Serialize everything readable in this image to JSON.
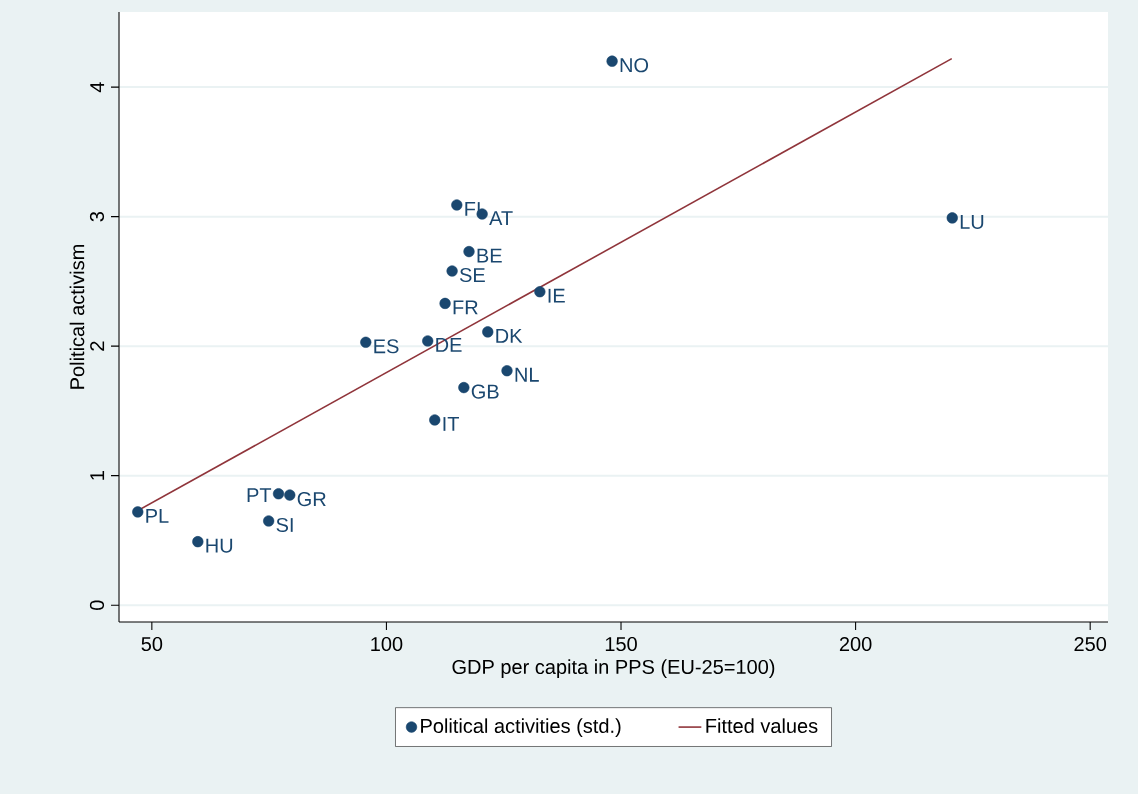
{
  "chart_data": {
    "type": "scatter",
    "xlabel": "GDP per capita in PPS (EU-25=100)",
    "ylabel": "Political activism",
    "x": [
      148.1,
      115.0,
      120.4,
      117.6,
      114.0,
      132.7,
      112.5,
      121.6,
      95.6,
      108.8,
      125.7,
      116.5,
      110.3,
      77.0,
      79.4,
      220.6,
      47.0,
      59.8,
      74.9
    ],
    "series": [
      {
        "name": "Political activities (std.)",
        "color": "#1a476f",
        "marker": "circle",
        "values": [
          4.2,
          3.09,
          3.02,
          2.73,
          2.58,
          2.42,
          2.33,
          2.11,
          2.03,
          2.04,
          1.81,
          1.68,
          1.43,
          0.86,
          0.85,
          2.99,
          0.72,
          0.49,
          0.65
        ]
      },
      {
        "name": "Fitted values",
        "type": "line",
        "color": "#90353b",
        "marker": "none",
        "line_style": "solid",
        "x": [
          46.5,
          220.5
        ],
        "values": [
          0.72,
          4.22
        ]
      }
    ],
    "annotations": [
      {
        "text": "NO",
        "x": 148.1,
        "y": 4.2
      },
      {
        "text": "FI",
        "x": 115.0,
        "y": 3.09
      },
      {
        "text": "AT",
        "x": 120.4,
        "y": 3.02
      },
      {
        "text": "BE",
        "x": 117.6,
        "y": 2.73
      },
      {
        "text": "SE",
        "x": 114.0,
        "y": 2.58
      },
      {
        "text": "IE",
        "x": 132.7,
        "y": 2.42
      },
      {
        "text": "FR",
        "x": 112.5,
        "y": 2.33
      },
      {
        "text": "DK",
        "x": 121.6,
        "y": 2.11
      },
      {
        "text": "ES",
        "x": 95.6,
        "y": 2.03
      },
      {
        "text": "DE",
        "x": 108.8,
        "y": 2.04
      },
      {
        "text": "NL",
        "x": 125.7,
        "y": 1.81
      },
      {
        "text": "GB",
        "x": 116.5,
        "y": 1.68
      },
      {
        "text": "IT",
        "x": 110.3,
        "y": 1.43
      },
      {
        "text": "PT",
        "x": 77.0,
        "y": 0.86
      },
      {
        "text": "GR",
        "x": 79.4,
        "y": 0.85
      },
      {
        "text": "LU",
        "x": 220.6,
        "y": 2.99
      },
      {
        "text": "PL",
        "x": 47.0,
        "y": 0.72
      },
      {
        "text": "HU",
        "x": 59.8,
        "y": 0.49
      },
      {
        "text": "SI",
        "x": 74.9,
        "y": 0.65
      }
    ],
    "xlim": [
      43,
      253.8
    ],
    "ylim": [
      -0.13,
      4.58
    ],
    "xticks": [
      50,
      100,
      150,
      200,
      250
    ],
    "yticks": [
      0,
      1,
      2,
      3,
      4
    ],
    "grid": "y",
    "legend": "bottom"
  }
}
